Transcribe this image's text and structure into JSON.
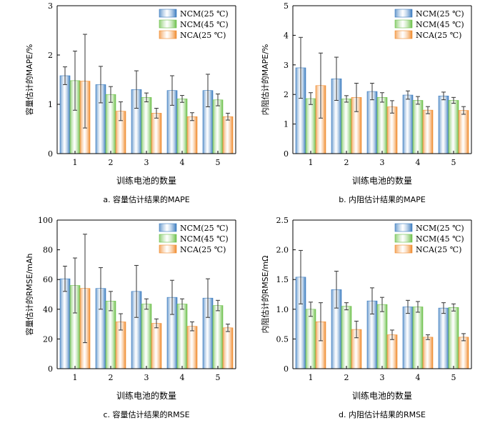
{
  "colors": {
    "series": [
      "#3a7bbf",
      "#6cc04a",
      "#f08a2c"
    ],
    "error_bar": "#333333",
    "axis": "#000000"
  },
  "chart_data": [
    {
      "type": "bar",
      "panel_caption": "a.  容量估计结果的MAPE",
      "xlabel": "训练电池的数量",
      "ylabel": "容量估计的MAPE/%",
      "categories": [
        "1",
        "2",
        "3",
        "4",
        "5"
      ],
      "ylim": [
        0,
        3
      ],
      "yticks": [
        "0",
        "1",
        "2",
        "3"
      ],
      "legend_position": "top-right",
      "series": [
        {
          "name": "NCM(25 ℃)",
          "values": [
            1.58,
            1.4,
            1.3,
            1.28,
            1.28
          ],
          "errors": [
            0.18,
            0.37,
            0.38,
            0.3,
            0.33
          ]
        },
        {
          "name": "NCM(45 ℃)",
          "values": [
            1.48,
            1.2,
            1.14,
            1.11,
            1.09
          ],
          "errors": [
            0.6,
            0.16,
            0.09,
            0.07,
            0.12
          ]
        },
        {
          "name": "NCA(25 ℃)",
          "values": [
            1.47,
            0.86,
            0.82,
            0.75,
            0.75
          ],
          "errors": [
            0.95,
            0.19,
            0.1,
            0.08,
            0.07
          ]
        }
      ]
    },
    {
      "type": "bar",
      "panel_caption": "b.  内阻估计结果的MAPE",
      "xlabel": "训练电池的数量",
      "ylabel": "内阻估计的MAPE/%",
      "categories": [
        "1",
        "2",
        "3",
        "4",
        "5"
      ],
      "ylim": [
        0,
        5
      ],
      "yticks": [
        "0",
        "1",
        "2",
        "3",
        "4",
        "5"
      ],
      "legend_position": "top-right",
      "series": [
        {
          "name": "NCM(25 ℃)",
          "values": [
            2.9,
            2.53,
            2.1,
            1.98,
            1.95
          ],
          "errors": [
            1.03,
            0.73,
            0.28,
            0.14,
            0.13
          ]
        },
        {
          "name": "NCM(45 ℃)",
          "values": [
            1.86,
            1.85,
            1.9,
            1.8,
            1.8
          ],
          "errors": [
            0.2,
            0.11,
            0.16,
            0.13,
            0.1
          ]
        },
        {
          "name": "NCA(25 ℃)",
          "values": [
            2.3,
            1.9,
            1.58,
            1.47,
            1.46
          ],
          "errors": [
            1.1,
            0.48,
            0.21,
            0.12,
            0.13
          ]
        }
      ]
    },
    {
      "type": "bar",
      "panel_caption": "c.  容量估计结果的RMSE",
      "xlabel": "训练电池的数量",
      "ylabel": "容量估计的RMSE/mAh",
      "categories": [
        "1",
        "2",
        "3",
        "4",
        "5"
      ],
      "ylim": [
        0,
        100
      ],
      "yticks": [
        "0",
        "20",
        "40",
        "60",
        "80",
        "100"
      ],
      "legend_position": "top-right",
      "series": [
        {
          "name": "NCM(25 ℃)",
          "values": [
            60.5,
            54.0,
            52.0,
            48.0,
            47.5
          ],
          "errors": [
            8.5,
            14.0,
            17.5,
            11.5,
            13.0
          ]
        },
        {
          "name": "NCM(45 ℃)",
          "values": [
            56.0,
            45.5,
            43.5,
            43.5,
            42.5
          ],
          "errors": [
            18.5,
            6.5,
            3.5,
            3.5,
            3.5
          ]
        },
        {
          "name": "NCA(25 ℃)",
          "values": [
            54.0,
            31.5,
            30.5,
            28.5,
            27.5
          ],
          "errors": [
            36.5,
            5.5,
            3.0,
            3.0,
            2.5
          ]
        }
      ]
    },
    {
      "type": "bar",
      "panel_caption": "d.  内阻估计结果的RMSE",
      "xlabel": "训练电池的数量",
      "ylabel": "内阻估计的RMSE/mΩ",
      "categories": [
        "1",
        "2",
        "3",
        "4",
        "5"
      ],
      "ylim": [
        0,
        2.5
      ],
      "yticks": [
        "0",
        "0.5",
        "1.0",
        "1.5",
        "2.0",
        "2.5"
      ],
      "legend_position": "top-right",
      "series": [
        {
          "name": "NCM(25 ℃)",
          "values": [
            1.54,
            1.33,
            1.14,
            1.04,
            1.02
          ],
          "errors": [
            0.45,
            0.31,
            0.22,
            0.11,
            0.09
          ]
        },
        {
          "name": "NCM(45 ℃)",
          "values": [
            1.0,
            1.05,
            1.08,
            1.04,
            1.03
          ],
          "errors": [
            0.12,
            0.06,
            0.12,
            0.09,
            0.06
          ]
        },
        {
          "name": "NCA(25 ℃)",
          "values": [
            0.79,
            0.66,
            0.57,
            0.53,
            0.53
          ],
          "errors": [
            0.32,
            0.14,
            0.08,
            0.04,
            0.06
          ]
        }
      ]
    }
  ]
}
